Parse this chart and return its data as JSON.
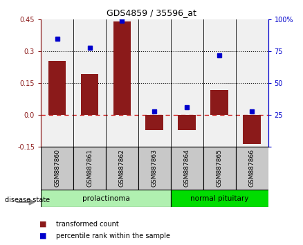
{
  "title": "GDS4859 / 35596_at",
  "samples": [
    "GSM887860",
    "GSM887861",
    "GSM887862",
    "GSM887863",
    "GSM887864",
    "GSM887865",
    "GSM887866"
  ],
  "transformed_count": [
    0.255,
    0.195,
    0.44,
    -0.07,
    -0.07,
    0.12,
    -0.135
  ],
  "percentile_rank": [
    85,
    78,
    99,
    28,
    31,
    72,
    28
  ],
  "ylim_left": [
    -0.15,
    0.45
  ],
  "yticks_left": [
    -0.15,
    0.0,
    0.15,
    0.3,
    0.45
  ],
  "ylim_right": [
    0,
    100
  ],
  "yticks_right": [
    0,
    25,
    50,
    75,
    100
  ],
  "bar_color": "#8B1A1A",
  "dot_color": "#0000CC",
  "hline_color": "#CC0000",
  "dotted_line_color": "black",
  "group_prolact_color": "#90EE90",
  "group_normal_color": "#00CC00",
  "label_box_color": "#c8c8c8",
  "plot_bg_color": "#f0f0f0",
  "groups": [
    {
      "label": "prolactinoma",
      "start": 0,
      "end": 3,
      "color": "#b0f0b0"
    },
    {
      "label": "normal pituitary",
      "start": 4,
      "end": 6,
      "color": "#00DD00"
    }
  ],
  "disease_state_label": "disease state",
  "legend_items": [
    {
      "label": "transformed count",
      "color": "#8B1A1A"
    },
    {
      "label": "percentile rank within the sample",
      "color": "#0000CC"
    }
  ],
  "bar_width": 0.55
}
